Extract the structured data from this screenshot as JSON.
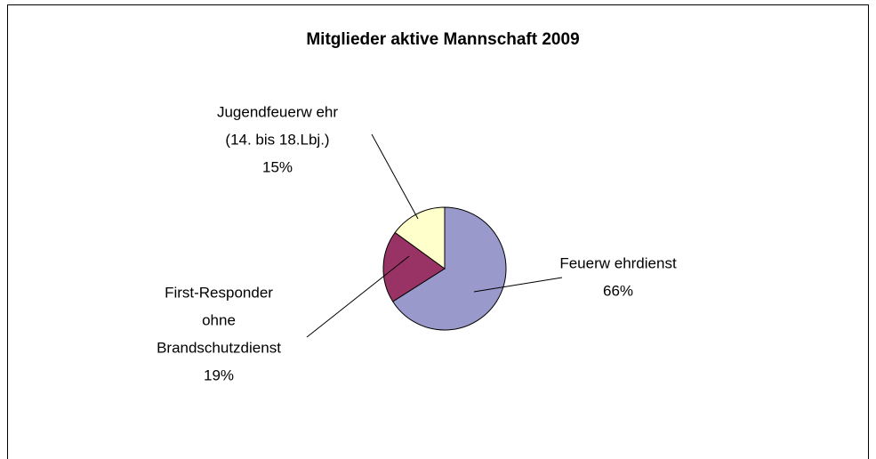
{
  "chart_data": {
    "type": "pie",
    "title": "Mitglieder aktive Mannschaft 2009",
    "categories": [
      [
        "Feuerw ehrdienst"
      ],
      [
        "First-Responder",
        "ohne",
        "Brandschutzdienst"
      ],
      [
        "Jugendfeuerw ehr",
        "(14. bis 18.Lbj.)"
      ]
    ],
    "values": [
      66,
      19,
      15
    ],
    "value_labels": [
      "66%",
      "19%",
      "15%"
    ],
    "colors": [
      "#9999cc",
      "#993366",
      "#ffffcc"
    ]
  }
}
